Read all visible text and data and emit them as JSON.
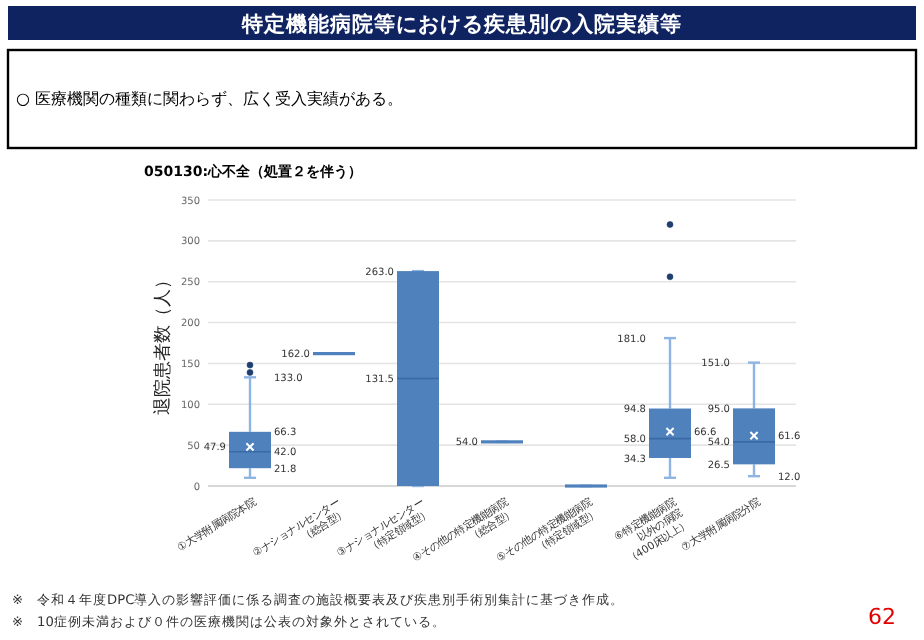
{
  "chart_data": {
    "type": "box",
    "title": "特定機能病院等における疾患別の入院実績等",
    "subtitle": "○ 医療機関の種類に関わらず、広く受入実績がある。",
    "ylabel": "退院患者数（人）",
    "categories": [
      "①大学附属病院本院",
      "②ナショナルセンター\n（総合型）",
      "③ナショナルセンター\n（特定領域型）",
      "④その他の特定機能病院\n（総合型）",
      "⑤その他の特定機能病院\n（特定領域型）",
      "⑥特定機能病院\n以外の病院\n（400床以上）",
      "⑦大学附属病院分院"
    ],
    "color": "#4f81bd",
    "boxes": [
      {
        "low": 10,
        "q1": 21.8,
        "median": 42.0,
        "q3": 66.3,
        "high": 133.0,
        "mean": 47.9,
        "outliers": [
          139,
          148
        ]
      },
      {
        "low": 162.0,
        "q1": 162.0,
        "median": 162.0,
        "q3": 162.0,
        "high": 162.0
      },
      {
        "low": 0,
        "q1": 0,
        "median": 131.5,
        "q3": 263.0,
        "high": 263.0
      },
      {
        "low": 54.0,
        "q1": 54.0,
        "median": 54.0,
        "q3": 54.0,
        "high": 54.0
      },
      {
        "low": 0,
        "q1": 0,
        "median": 0,
        "q3": 0,
        "high": 0
      },
      {
        "low": 10,
        "q1": 34.3,
        "median": 58.0,
        "q3": 94.8,
        "high": 181.0,
        "mean": 66.6,
        "outliers": [
          256,
          320
        ]
      },
      {
        "low": 12.0,
        "q1": 26.5,
        "median": 54.0,
        "q3": 95.0,
        "high": 151.0,
        "mean": 61.6
      }
    ],
    "value_labels": [
      {
        "high": "133.0",
        "q3": "66.3",
        "median": "42.0",
        "q1": "21.8",
        "mean": "47.9"
      },
      {
        "median": "162.0"
      },
      {
        "q3": "263.0",
        "median": "131.5"
      },
      {
        "median": "54.0"
      },
      null,
      {
        "high": "181.0",
        "q3": "94.8",
        "median": "58.0",
        "q1": "34.3",
        "mean": "66.6"
      },
      {
        "high": "151.0",
        "q3": "95.0",
        "median": "54.0",
        "q1": "26.5",
        "mean": "61.6",
        "low": "12.0"
      }
    ],
    "ylim": [
      0,
      350
    ],
    "yticks": [
      0,
      50,
      100,
      150,
      200,
      250,
      300,
      350
    ],
    "grid": "y",
    "annotations": [
      "050130:心不全（処置２を伴う）",
      "※　令和４年度DPC導入の影響評価に係る調査の施設概要表及び疾患別手術別集計に基づき作成。",
      "※　10症例未満および０件の医療機関は公表の対象外とされている。",
      "62"
    ]
  }
}
